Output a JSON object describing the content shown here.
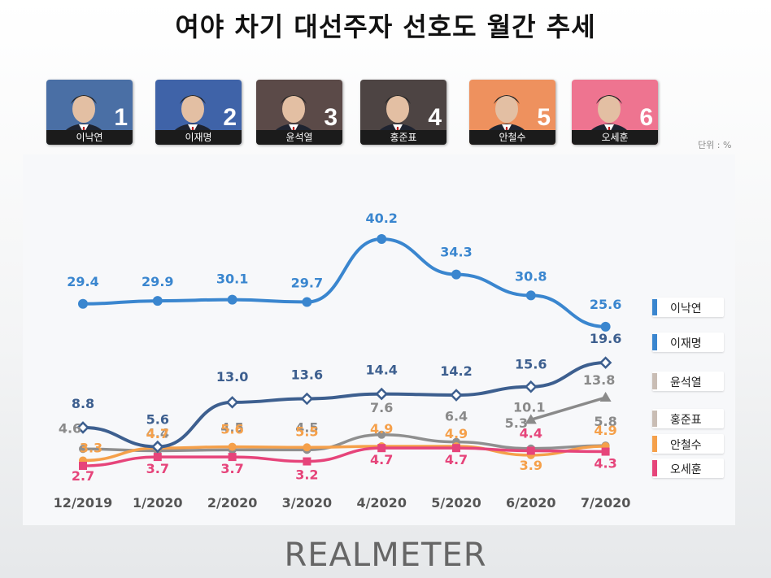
{
  "title": "여야 차기 대선주자 선호도 월간 추세",
  "unit": "단위 : %",
  "brand": "REALMETER",
  "candidates": [
    {
      "rank": "1",
      "name": "이낙연",
      "bg": "#4a6fa5"
    },
    {
      "rank": "2",
      "name": "이재명",
      "bg": "#3f63a8"
    },
    {
      "rank": "3",
      "name": "윤석열",
      "bg": "#5b4a48"
    },
    {
      "rank": "4",
      "name": "홍준표",
      "bg": "#4d4443"
    },
    {
      "rank": "5",
      "name": "안철수",
      "bg": "#ee915e"
    },
    {
      "rank": "6",
      "name": "오세훈",
      "bg": "#ee7490"
    }
  ],
  "chart_data": {
    "type": "line",
    "categories": [
      "12/2019",
      "1/2020",
      "2/2020",
      "3/2020",
      "4/2020",
      "5/2020",
      "6/2020",
      "7/2020"
    ],
    "series": [
      {
        "name": "이낙연",
        "color": "#3a86cf",
        "values": [
          29.4,
          29.9,
          30.1,
          29.7,
          40.2,
          34.3,
          30.8,
          25.6
        ]
      },
      {
        "name": "이재명",
        "color": "#3d5f8f",
        "values": [
          8.8,
          5.6,
          13.0,
          13.6,
          14.4,
          14.2,
          15.6,
          19.6
        ]
      },
      {
        "name": "윤석열",
        "color": "#8a8a8a",
        "values": [
          null,
          null,
          null,
          null,
          null,
          null,
          10.1,
          13.8
        ]
      },
      {
        "name": "홍준표",
        "color": "#8f8f8f",
        "values": [
          4.6,
          4.4,
          4.5,
          4.5,
          7.6,
          6.4,
          5.3,
          5.8
        ]
      },
      {
        "name": "안철수",
        "color": "#f5a04a",
        "values": [
          3.3,
          4.7,
          5.6,
          5.5,
          4.9,
          4.9,
          3.9,
          4.9
        ]
      },
      {
        "name": "오세훈",
        "color": "#e6447a",
        "values": [
          2.7,
          3.7,
          3.7,
          3.2,
          4.7,
          4.7,
          4.4,
          4.3
        ]
      }
    ],
    "data_labels": [
      [
        "29.4",
        "29.9",
        "30.1",
        "29.7",
        "40.2",
        "34.3",
        "30.8",
        "25.6"
      ],
      [
        "8.8",
        "5.6",
        "13.0",
        "13.6",
        "14.4",
        "14.2",
        "15.6",
        "19.6"
      ],
      [
        "",
        "",
        "",
        "",
        "",
        "",
        "10.1",
        "13.8"
      ],
      [
        "4.6",
        "4.4",
        "4.5",
        "4.5",
        "7.6",
        "6.4",
        "5.3",
        "5.8"
      ],
      [
        "3.3",
        "4.7",
        "5.6",
        "5.5",
        "4.9",
        "4.9",
        "3.9",
        "4.9"
      ],
      [
        "2.7",
        "3.7",
        "3.7",
        "3.2",
        "4.7",
        "4.7",
        "4.4",
        "4.3"
      ]
    ],
    "legend": {
      "position": "right",
      "entries": [
        "이낙연",
        "이재명",
        "윤석열",
        "홍준표",
        "안철수",
        "오세훈"
      ]
    },
    "legend_colors": [
      "#3a86cf",
      "#3a86cf",
      "#c9bdb4",
      "#c9bdb4",
      "#f5a04a",
      "#e6447a"
    ],
    "grid": false
  }
}
